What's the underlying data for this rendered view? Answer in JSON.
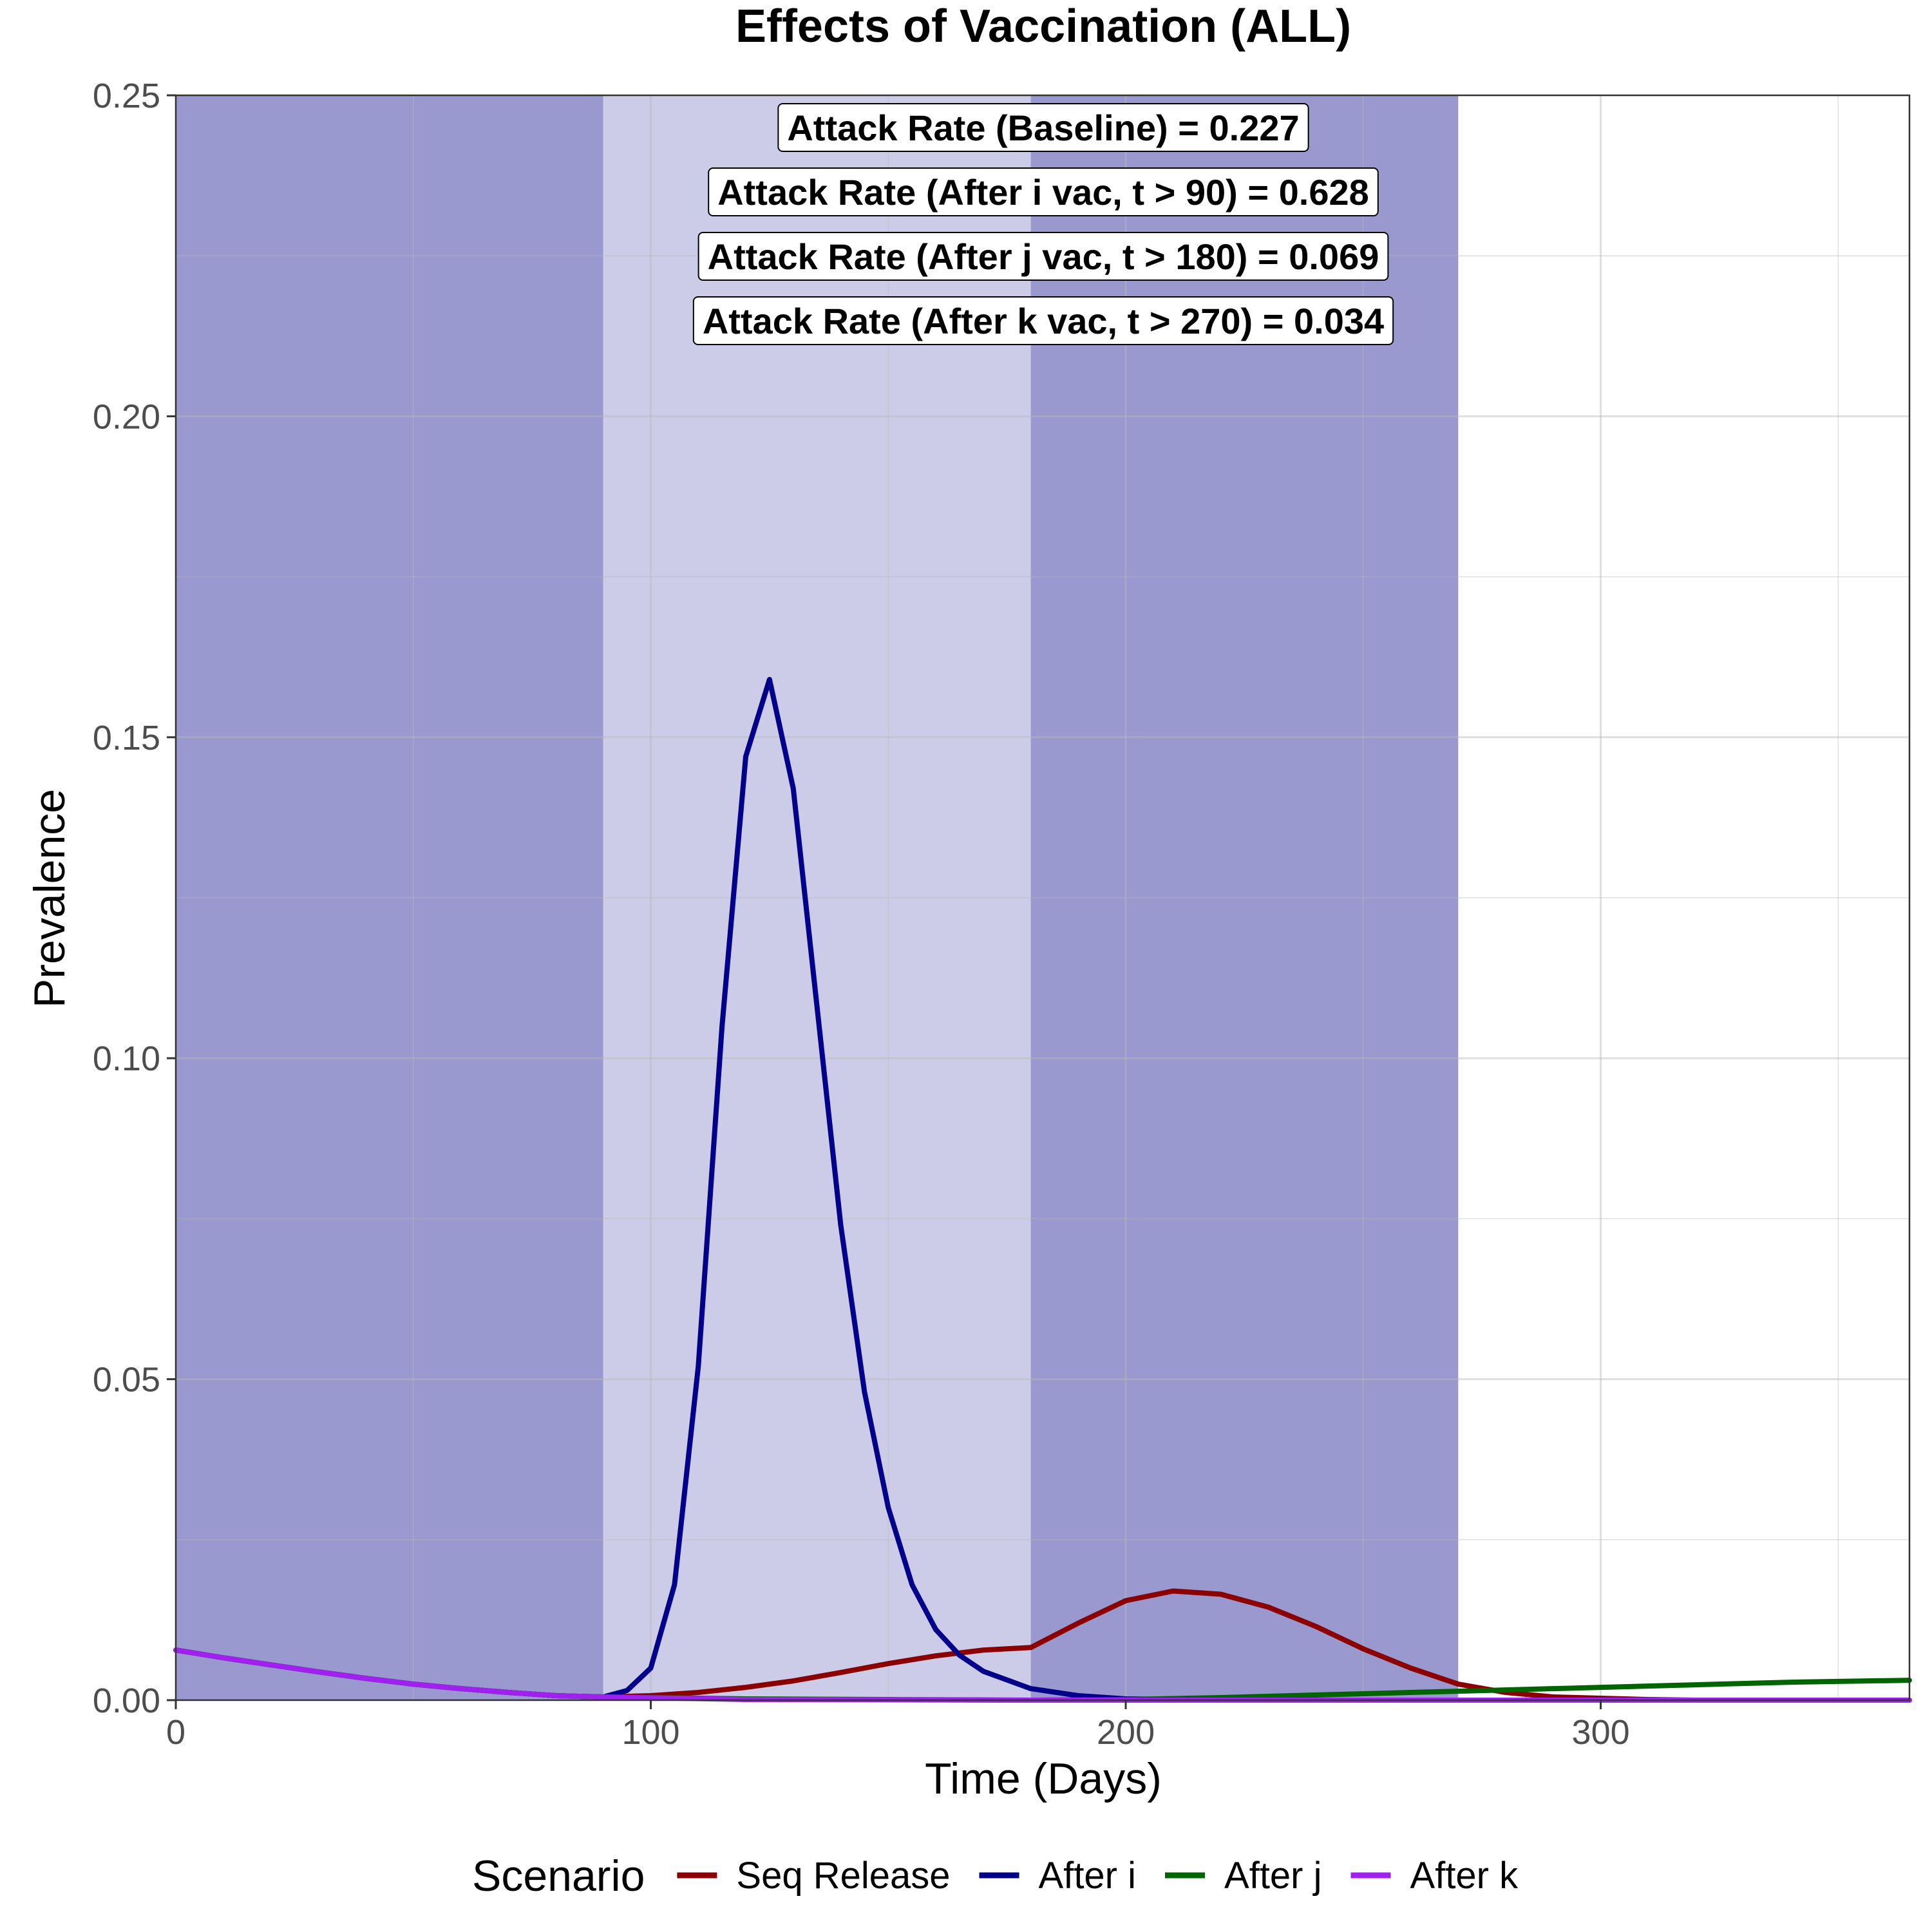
{
  "chart_data": {
    "type": "line",
    "title": "Effects of Vaccination (ALL)",
    "xlabel": "Time (Days)",
    "ylabel": "Prevalence",
    "xlim": [
      0,
      365
    ],
    "ylim": [
      0,
      0.25
    ],
    "x_ticks": [
      0,
      100,
      200,
      300
    ],
    "x_tick_labels": [
      "0",
      "100",
      "200",
      "300"
    ],
    "y_ticks": [
      0,
      0.05,
      0.1,
      0.15,
      0.2,
      0.25
    ],
    "y_tick_labels": [
      "0.00",
      "0.05",
      "0.10",
      "0.15",
      "0.20",
      "0.25"
    ],
    "grid": true,
    "shaded_periods": [
      {
        "x_start": 0,
        "x_end": 90,
        "color": "#9999CF"
      },
      {
        "x_start": 90,
        "x_end": 180,
        "color": "#CCCCE8"
      },
      {
        "x_start": 180,
        "x_end": 270,
        "color": "#9999CF"
      }
    ],
    "annotations": [
      "Attack Rate (Baseline) = 0.227",
      "Attack Rate (After i vac, t > 90) = 0.628",
      "Attack Rate (After j vac, t > 180) = 0.069",
      "Attack Rate (After k vac, t > 270) = 0.034"
    ],
    "legend": {
      "title": "Scenario",
      "position": "bottom"
    },
    "series": [
      {
        "name": "Seq Release",
        "color": "#8B0000",
        "x": [
          0,
          10,
          20,
          30,
          40,
          50,
          60,
          70,
          80,
          90,
          100,
          110,
          120,
          130,
          140,
          150,
          160,
          170,
          180,
          190,
          200,
          210,
          220,
          230,
          240,
          250,
          260,
          270,
          280,
          290,
          300,
          310,
          320,
          365
        ],
        "y": [
          0.0078,
          0.0066,
          0.0055,
          0.0044,
          0.0034,
          0.0025,
          0.0018,
          0.0012,
          0.0007,
          0.0005,
          0.0007,
          0.0012,
          0.002,
          0.003,
          0.0043,
          0.0057,
          0.0069,
          0.0078,
          0.0082,
          0.012,
          0.0155,
          0.017,
          0.0165,
          0.0145,
          0.0115,
          0.008,
          0.005,
          0.0025,
          0.0012,
          0.0005,
          0.0003,
          0.0001,
          0.0,
          0.0
        ]
      },
      {
        "name": "After i",
        "color": "#00008B",
        "x": [
          0,
          10,
          20,
          30,
          40,
          50,
          60,
          70,
          80,
          90,
          95,
          100,
          105,
          110,
          115,
          120,
          125,
          130,
          135,
          140,
          145,
          150,
          155,
          160,
          165,
          170,
          180,
          190,
          200,
          210,
          220
        ],
        "y": [
          0.0078,
          0.0066,
          0.0055,
          0.0044,
          0.0034,
          0.0025,
          0.0018,
          0.0012,
          0.0007,
          0.0005,
          0.0015,
          0.005,
          0.018,
          0.052,
          0.105,
          0.147,
          0.159,
          0.142,
          0.108,
          0.074,
          0.048,
          0.03,
          0.018,
          0.011,
          0.007,
          0.0045,
          0.0018,
          0.0007,
          0.0002,
          0.0001,
          0.0
        ]
      },
      {
        "name": "After j",
        "color": "#006400",
        "x": [
          0,
          10,
          20,
          30,
          40,
          50,
          60,
          70,
          80,
          90,
          120,
          150,
          180,
          200,
          220,
          240,
          260,
          280,
          300,
          320,
          340,
          365
        ],
        "y": [
          0.0078,
          0.0066,
          0.0055,
          0.0044,
          0.0034,
          0.0025,
          0.0018,
          0.0012,
          0.0007,
          0.0005,
          0.0002,
          0.0001,
          0.0,
          0.0001,
          0.0004,
          0.0008,
          0.0012,
          0.0016,
          0.002,
          0.0024,
          0.0028,
          0.0031
        ]
      },
      {
        "name": "After k",
        "color": "#A020F0",
        "x": [
          0,
          10,
          20,
          30,
          40,
          50,
          60,
          70,
          80,
          90,
          120,
          180,
          270,
          365
        ],
        "y": [
          0.0078,
          0.0066,
          0.0055,
          0.0044,
          0.0034,
          0.0025,
          0.0018,
          0.0012,
          0.0007,
          0.0005,
          0.0001,
          0.0,
          0.0,
          0.0
        ]
      }
    ]
  }
}
